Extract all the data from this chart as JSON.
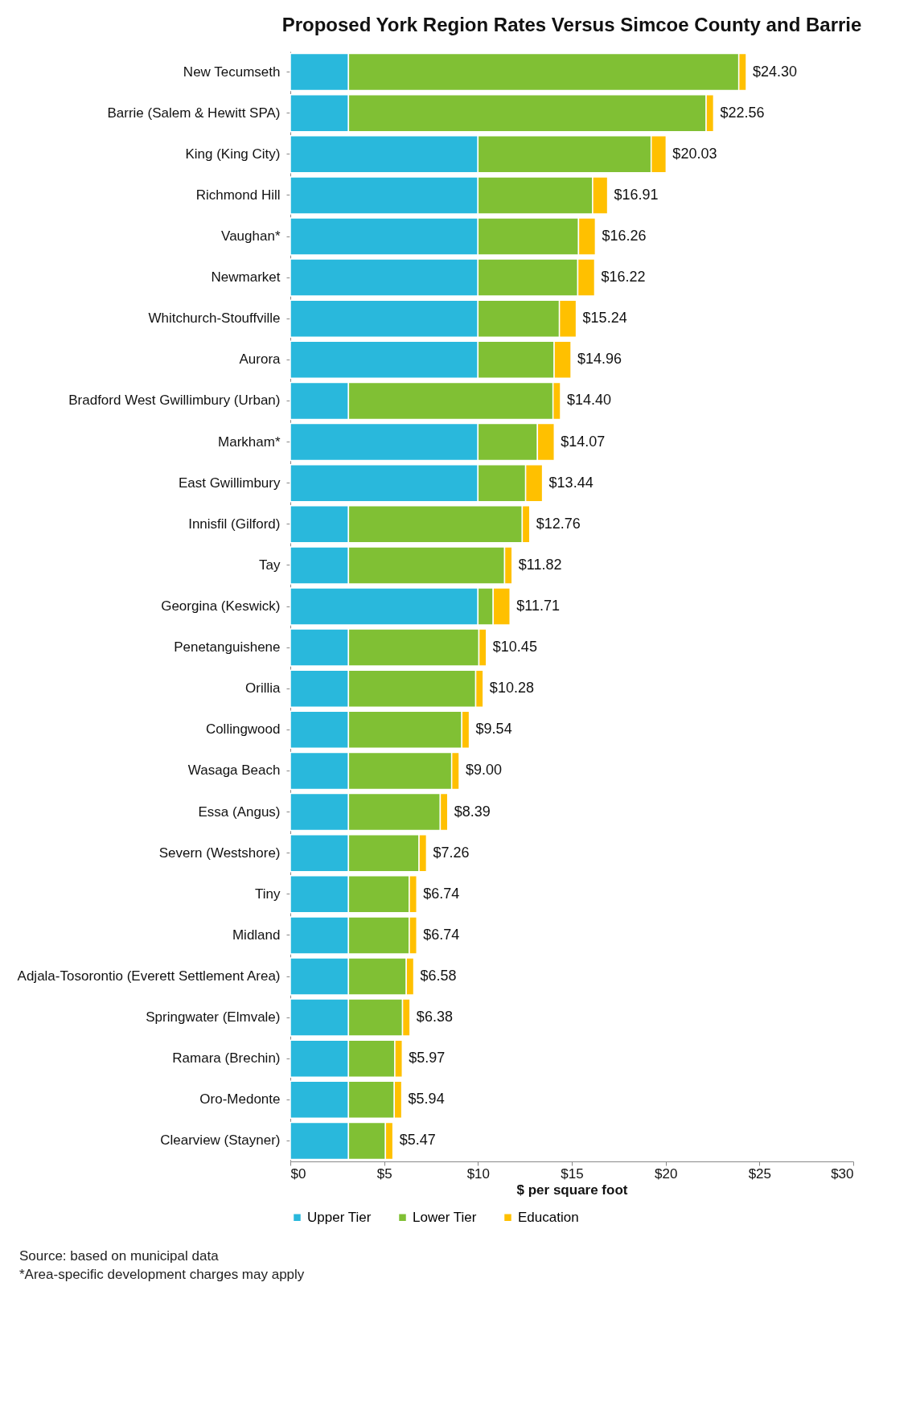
{
  "chart_data": {
    "type": "bar",
    "orientation": "horizontal",
    "stacked": true,
    "title": "Proposed York Region Rates Versus Simcoe County and Barrie",
    "xlabel": "$ per square foot",
    "categories": [
      "New Tecumseth",
      "Barrie (Salem & Hewitt SPA)",
      "King (King City)",
      "Richmond Hill",
      "Vaughan*",
      "Newmarket",
      "Whitchurch-Stouffville",
      "Aurora",
      "Bradford West Gwillimbury (Urban)",
      "Markham*",
      "East Gwillimbury",
      "Innisfil (Gilford)",
      "Tay",
      "Georgina (Keswick)",
      "Penetanguishene",
      "Orillia",
      "Collingwood",
      "Wasaga Beach",
      "Essa (Angus)",
      "Severn (Westshore)",
      "Tiny",
      "Midland",
      "Adjala-Tosorontio (Everett Settlement Area)",
      "Springwater (Elmvale)",
      "Ramara (Brechin)",
      "Oro-Medonte",
      "Clearview (Stayner)"
    ],
    "series": [
      {
        "name": "Upper Tier",
        "color": "#29b8dc",
        "values": [
          3.1,
          3.1,
          10.0,
          10.0,
          10.0,
          10.0,
          10.0,
          10.0,
          3.1,
          10.0,
          10.0,
          3.1,
          3.1,
          10.0,
          3.1,
          3.1,
          3.1,
          3.1,
          3.1,
          3.1,
          3.1,
          3.1,
          3.1,
          3.1,
          3.1,
          3.1,
          3.1
        ]
      },
      {
        "name": "Lower Tier",
        "color": "#80c034",
        "values": [
          20.8,
          19.06,
          9.23,
          6.11,
          5.36,
          5.32,
          4.34,
          4.06,
          10.9,
          3.17,
          2.54,
          9.26,
          8.32,
          0.81,
          6.95,
          6.78,
          6.04,
          5.5,
          4.89,
          3.76,
          3.24,
          3.24,
          3.08,
          2.88,
          2.47,
          2.44,
          1.97
        ]
      },
      {
        "name": "Education",
        "color": "#ffc000",
        "values": [
          0.4,
          0.4,
          0.8,
          0.8,
          0.9,
          0.9,
          0.9,
          0.9,
          0.4,
          0.9,
          0.9,
          0.4,
          0.4,
          0.9,
          0.4,
          0.4,
          0.4,
          0.4,
          0.4,
          0.4,
          0.4,
          0.4,
          0.4,
          0.4,
          0.4,
          0.4,
          0.4
        ]
      }
    ],
    "totals": [
      "$24.30",
      "$22.56",
      "$20.03",
      "$16.91",
      "$16.26",
      "$16.22",
      "$15.24",
      "$14.96",
      "$14.40",
      "$14.07",
      "$13.44",
      "$12.76",
      "$11.82",
      "$11.71",
      "$10.45",
      "$10.28",
      "$9.54",
      "$9.00",
      "$8.39",
      "$7.26",
      "$6.74",
      "$6.74",
      "$6.58",
      "$6.38",
      "$5.97",
      "$5.94",
      "$5.47"
    ],
    "xlim": [
      0,
      30
    ],
    "xticks": [
      {
        "value": 0,
        "label": "$0"
      },
      {
        "value": 5,
        "label": "$5"
      },
      {
        "value": 10,
        "label": "$10"
      },
      {
        "value": 15,
        "label": "$15"
      },
      {
        "value": 20,
        "label": "$20"
      },
      {
        "value": 25,
        "label": "$25"
      },
      {
        "value": 30,
        "label": "$30"
      }
    ],
    "grid": false,
    "legend": "bottom",
    "annotations": [
      "Source: based on municipal data",
      "*Area-specific development charges may apply"
    ]
  }
}
